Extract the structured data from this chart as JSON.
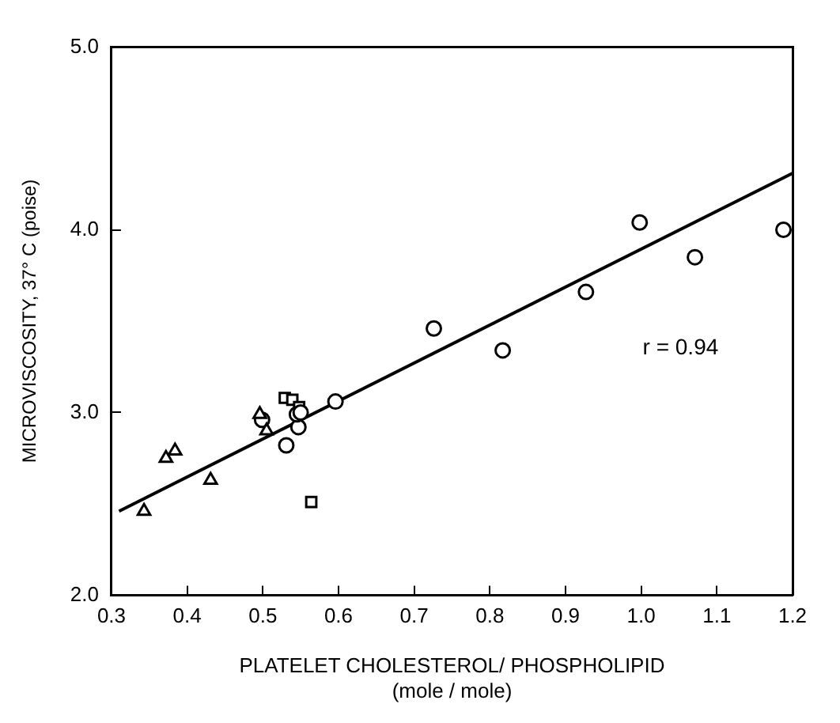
{
  "chart_data": {
    "type": "scatter",
    "xlabel": "PLATELET CHOLESTEROL/ PHOSPHOLIPID\n(mole / mole)",
    "ylabel": "MICROVISCOSITY, 37° C (poise)",
    "annotations": [
      "r = 0.94"
    ],
    "xlim": [
      0.3,
      1.2
    ],
    "ylim": [
      2.0,
      5.0
    ],
    "xticks": [
      0.3,
      0.4,
      0.5,
      0.6,
      0.7,
      0.8,
      0.9,
      {
        "value": 1.0,
        "label": "1.0"
      },
      {
        "value": 1.1,
        "label": "1.1"
      },
      {
        "value": 1.2,
        "label": "1.2"
      }
    ],
    "yticks": [
      {
        "value": 2,
        "label": "2.0"
      },
      {
        "value": 3,
        "label": "3.0"
      },
      {
        "value": 4,
        "label": "4.0"
      },
      {
        "value": 5,
        "label": "5.0"
      }
    ],
    "grid": false,
    "legend": false,
    "series": [
      {
        "marker": "triangle",
        "color": "#000000",
        "x": [
          0.343,
          0.372,
          0.384,
          0.431,
          0.496,
          0.505
        ],
        "values": [
          2.46,
          2.75,
          2.79,
          2.63,
          2.99,
          2.9
        ]
      },
      {
        "marker": "circle",
        "color": "#000000",
        "x": [
          0.499,
          0.531,
          0.547,
          0.545,
          0.596,
          0.55
        ],
        "values": [
          2.96,
          2.82,
          2.92,
          2.99,
          3.06,
          3.0
        ]
      },
      {
        "marker": "square",
        "color": "#000000",
        "x": [
          0.529,
          0.539,
          0.548,
          0.564
        ],
        "values": [
          3.08,
          3.07,
          3.03,
          2.51
        ]
      },
      {
        "marker": "circle",
        "color": "#000000",
        "x": [
          0.726,
          0.817,
          0.927,
          0.998,
          1.071,
          1.188
        ],
        "values": [
          3.46,
          3.34,
          3.66,
          4.04,
          3.85,
          4.0
        ]
      },
      {
        "type": "line",
        "marker": "none",
        "color": "#000000",
        "x": [
          0.31,
          1.2
        ],
        "values": [
          2.46,
          4.31
        ]
      }
    ]
  }
}
